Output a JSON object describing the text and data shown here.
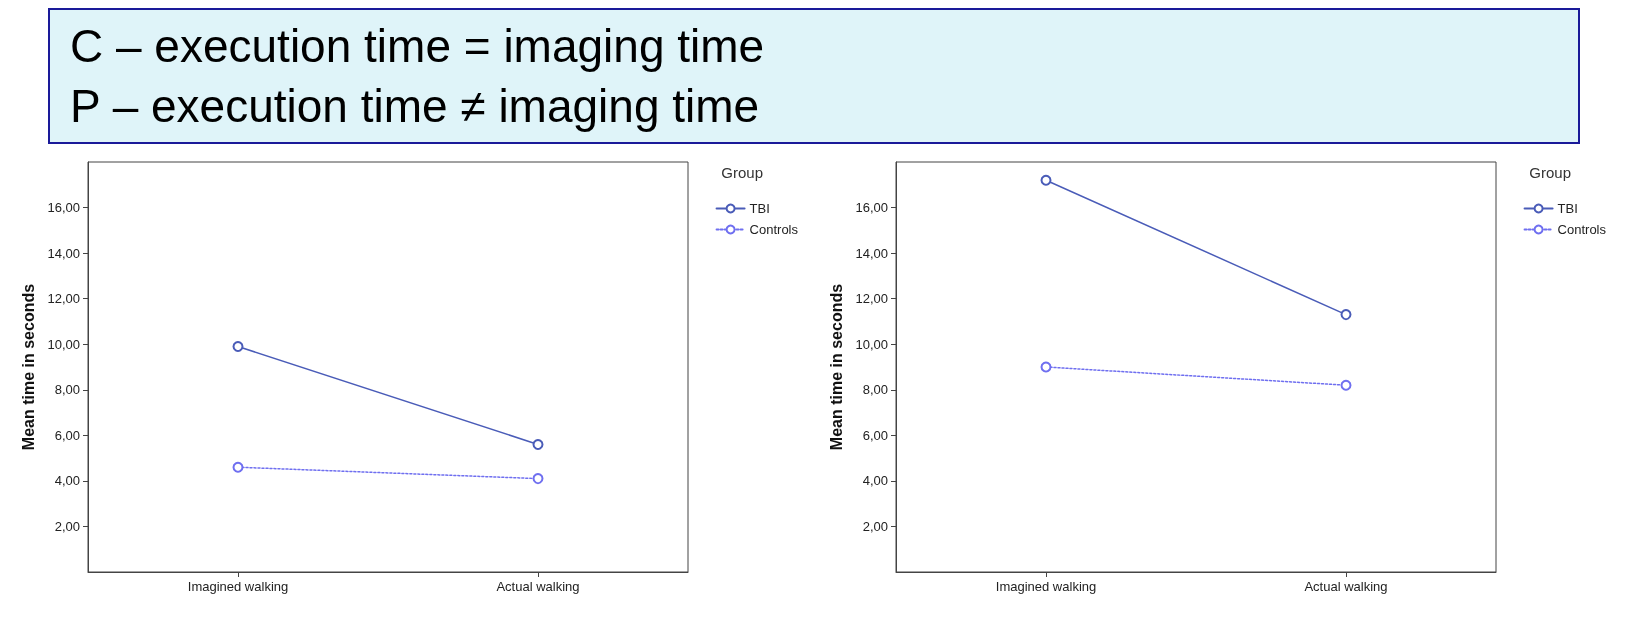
{
  "chart_data": [
    {
      "type": "line",
      "ylabel": "Mean time in seconds",
      "legend_title": "Group",
      "legend": "right",
      "marker": "circle",
      "grid": false,
      "annotations": [
        "C – execution time = imaging time",
        "P – execution time ≠ imaging time"
      ],
      "categories": [
        "Imagined walking",
        "Actual walking"
      ],
      "ylim": [
        0,
        18
      ],
      "yticks": [
        {
          "value": 2,
          "label": "2,00"
        },
        {
          "value": 4,
          "label": "4,00"
        },
        {
          "value": 6,
          "label": "6,00"
        },
        {
          "value": 8,
          "label": "8,00"
        },
        {
          "value": 10,
          "label": "10,00"
        },
        {
          "value": 12,
          "label": "12,00"
        },
        {
          "value": 14,
          "label": "14,00"
        },
        {
          "value": 16,
          "label": "16,00"
        }
      ],
      "series": [
        {
          "name": "TBI",
          "color": "#4a5cb8",
          "line_style": "solid",
          "values": [
            9.9,
            5.6
          ]
        },
        {
          "name": "Controls",
          "color": "#6f6ff0",
          "line_style": "dotted",
          "values": [
            4.6,
            4.1
          ]
        }
      ]
    },
    {
      "type": "line",
      "ylabel": "Mean time in seconds",
      "legend_title": "Group",
      "legend": "right",
      "marker": "circle",
      "grid": false,
      "categories": [
        "Imagined walking",
        "Actual walking"
      ],
      "ylim": [
        0,
        18
      ],
      "yticks": [
        {
          "value": 2,
          "label": "2,00"
        },
        {
          "value": 4,
          "label": "4,00"
        },
        {
          "value": 6,
          "label": "6,00"
        },
        {
          "value": 8,
          "label": "8,00"
        },
        {
          "value": 10,
          "label": "10,00"
        },
        {
          "value": 12,
          "label": "12,00"
        },
        {
          "value": 14,
          "label": "14,00"
        },
        {
          "value": 16,
          "label": "16,00"
        }
      ],
      "series": [
        {
          "name": "TBI",
          "color": "#4a5cb8",
          "line_style": "solid",
          "values": [
            17.2,
            11.3
          ]
        },
        {
          "name": "Controls",
          "color": "#6f6ff0",
          "line_style": "dotted",
          "values": [
            9.0,
            8.2
          ]
        }
      ]
    }
  ]
}
